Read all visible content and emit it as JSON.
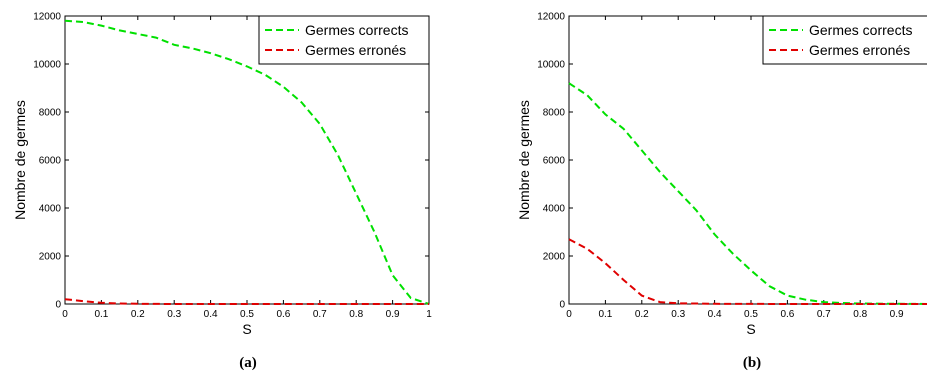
{
  "captions": [
    "(a)",
    "(b)"
  ],
  "chart_data": [
    {
      "type": "line",
      "title": "",
      "xlabel": "S",
      "ylabel": "Nombre de germes",
      "xlim": [
        0,
        1
      ],
      "ylim": [
        0,
        12000
      ],
      "xticks": [
        0,
        0.1,
        0.2,
        0.3,
        0.4,
        0.5,
        0.6,
        0.7,
        0.8,
        0.9,
        1
      ],
      "xtick_labels": [
        "0",
        "0.1",
        "0.2",
        "0.3",
        "0.4",
        "0.5",
        "0.6",
        "0.7",
        "0.8",
        "0.9",
        "1"
      ],
      "yticks": [
        0,
        2000,
        4000,
        6000,
        8000,
        10000,
        12000
      ],
      "ytick_labels": [
        "0",
        "2000",
        "4000",
        "6000",
        "8000",
        "10000",
        "12000"
      ],
      "grid": false,
      "legend_position": "top-right",
      "series": [
        {
          "name": "Germes corrects",
          "color": "#00e000",
          "style": "dashed",
          "x": [
            0,
            0.05,
            0.1,
            0.15,
            0.2,
            0.25,
            0.3,
            0.35,
            0.4,
            0.45,
            0.5,
            0.55,
            0.6,
            0.65,
            0.7,
            0.75,
            0.8,
            0.85,
            0.9,
            0.95,
            1
          ],
          "values": [
            11800,
            11750,
            11600,
            11400,
            11250,
            11100,
            10800,
            10650,
            10450,
            10200,
            9900,
            9550,
            9050,
            8400,
            7500,
            6200,
            4600,
            3000,
            1200,
            250,
            0
          ]
        },
        {
          "name": "Germes erronés",
          "color": "#e00000",
          "style": "dashed",
          "x": [
            0,
            0.05,
            0.1,
            0.15,
            0.2,
            0.25,
            0.3,
            0.4,
            0.5,
            0.6,
            0.7,
            0.8,
            0.9,
            1
          ],
          "values": [
            200,
            120,
            50,
            20,
            10,
            5,
            0,
            0,
            0,
            0,
            0,
            0,
            0,
            0
          ]
        }
      ]
    },
    {
      "type": "line",
      "title": "",
      "xlabel": "S",
      "ylabel": "Nombre de germes",
      "xlim": [
        0,
        1
      ],
      "ylim": [
        0,
        12000
      ],
      "xticks": [
        0,
        0.1,
        0.2,
        0.3,
        0.4,
        0.5,
        0.6,
        0.7,
        0.8,
        0.9
      ],
      "xtick_labels": [
        "0",
        "0.1",
        "0.2",
        "0.3",
        "0.4",
        "0.5",
        "0.6",
        "0.7",
        "0.8",
        "0.9"
      ],
      "yticks": [
        0,
        2000,
        4000,
        6000,
        8000,
        10000,
        12000
      ],
      "ytick_labels": [
        "0",
        "2000",
        "4000",
        "6000",
        "8000",
        "10000",
        "12000"
      ],
      "grid": false,
      "legend_position": "top-right",
      "series": [
        {
          "name": "Germes corrects",
          "color": "#00e000",
          "style": "dashed",
          "x": [
            0,
            0.05,
            0.1,
            0.15,
            0.2,
            0.25,
            0.3,
            0.35,
            0.4,
            0.45,
            0.5,
            0.55,
            0.6,
            0.65,
            0.7,
            0.75,
            0.8,
            0.9,
            1
          ],
          "values": [
            9200,
            8700,
            7900,
            7300,
            6400,
            5500,
            4700,
            3900,
            2900,
            2100,
            1400,
            750,
            350,
            180,
            80,
            40,
            20,
            10,
            0
          ]
        },
        {
          "name": "Germes erronés",
          "color": "#e00000",
          "style": "dashed",
          "x": [
            0,
            0.05,
            0.1,
            0.15,
            0.2,
            0.25,
            0.3,
            0.35,
            0.4,
            0.5,
            0.6,
            0.7,
            0.8,
            0.9,
            1
          ],
          "values": [
            2700,
            2300,
            1700,
            1000,
            350,
            80,
            30,
            20,
            10,
            5,
            0,
            0,
            0,
            0,
            0
          ]
        }
      ]
    }
  ]
}
